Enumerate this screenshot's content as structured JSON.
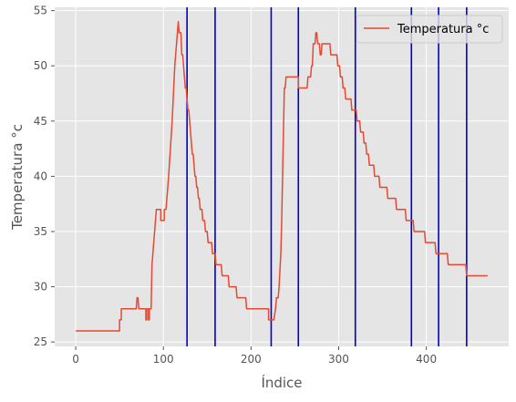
{
  "chart_data": {
    "type": "line",
    "title": "",
    "xlabel": "Índice",
    "ylabel": "Temperatura °c",
    "xlim": [
      -24,
      494
    ],
    "ylim": [
      24.6,
      55.3
    ],
    "xticks": [
      0,
      100,
      200,
      300,
      400
    ],
    "yticks": [
      25,
      30,
      35,
      40,
      45,
      50,
      55
    ],
    "grid": true,
    "legend": "top-right",
    "series": [
      {
        "name": "Temperatura °c",
        "color": "#E24A33",
        "points": [
          [
            0,
            26
          ],
          [
            50,
            26
          ],
          [
            50,
            27
          ],
          [
            52,
            27
          ],
          [
            52,
            28
          ],
          [
            69,
            28
          ],
          [
            70,
            29
          ],
          [
            71,
            29
          ],
          [
            72,
            28
          ],
          [
            80,
            28
          ],
          [
            80,
            27
          ],
          [
            81,
            27
          ],
          [
            81,
            28
          ],
          [
            83,
            28
          ],
          [
            83,
            27
          ],
          [
            84,
            27
          ],
          [
            84,
            28
          ],
          [
            86,
            28
          ],
          [
            87,
            32
          ],
          [
            90,
            35
          ],
          [
            92,
            37
          ],
          [
            97,
            37
          ],
          [
            97,
            36
          ],
          [
            101,
            36
          ],
          [
            101,
            37
          ],
          [
            103,
            37
          ],
          [
            106,
            40
          ],
          [
            110,
            45
          ],
          [
            113,
            50
          ],
          [
            116,
            53
          ],
          [
            117,
            54
          ],
          [
            118,
            53
          ],
          [
            120,
            53
          ],
          [
            121,
            51
          ],
          [
            122,
            51
          ],
          [
            124,
            49
          ],
          [
            125,
            48
          ],
          [
            126,
            48
          ],
          [
            127,
            47
          ],
          [
            128,
            46
          ],
          [
            129,
            46
          ],
          [
            130,
            45
          ],
          [
            131,
            44
          ],
          [
            132,
            43
          ],
          [
            133,
            42
          ],
          [
            134,
            42
          ],
          [
            135,
            41
          ],
          [
            136,
            40
          ],
          [
            137,
            40
          ],
          [
            138,
            39
          ],
          [
            139,
            39
          ],
          [
            140,
            38
          ],
          [
            141,
            38
          ],
          [
            142,
            37
          ],
          [
            144,
            37
          ],
          [
            145,
            36
          ],
          [
            147,
            36
          ],
          [
            148,
            35
          ],
          [
            150,
            35
          ],
          [
            151,
            34
          ],
          [
            155,
            34
          ],
          [
            156,
            33
          ],
          [
            159,
            33
          ],
          [
            160,
            32
          ],
          [
            166,
            32
          ],
          [
            167,
            31
          ],
          [
            174,
            31
          ],
          [
            175,
            30
          ],
          [
            183,
            30
          ],
          [
            184,
            29
          ],
          [
            194,
            29
          ],
          [
            195,
            28
          ],
          [
            220,
            28
          ],
          [
            220,
            27
          ],
          [
            226,
            27
          ],
          [
            228,
            28
          ],
          [
            229,
            29
          ],
          [
            231,
            29
          ],
          [
            232,
            30
          ],
          [
            234,
            33
          ],
          [
            235,
            36
          ],
          [
            237,
            44
          ],
          [
            238,
            48
          ],
          [
            239,
            48
          ],
          [
            240,
            49
          ],
          [
            254,
            49
          ],
          [
            254,
            48
          ],
          [
            264,
            48
          ],
          [
            265,
            49
          ],
          [
            268,
            49
          ],
          [
            269,
            50
          ],
          [
            270,
            50
          ],
          [
            271,
            52
          ],
          [
            273,
            52
          ],
          [
            274,
            53
          ],
          [
            275,
            53
          ],
          [
            276,
            52
          ],
          [
            278,
            52
          ],
          [
            279,
            51
          ],
          [
            280,
            51
          ],
          [
            281,
            52
          ],
          [
            290,
            52
          ],
          [
            291,
            51
          ],
          [
            298,
            51
          ],
          [
            299,
            50
          ],
          [
            301,
            50
          ],
          [
            302,
            49
          ],
          [
            304,
            49
          ],
          [
            305,
            48
          ],
          [
            307,
            48
          ],
          [
            308,
            47
          ],
          [
            314,
            47
          ],
          [
            315,
            46
          ],
          [
            320,
            46
          ],
          [
            321,
            45
          ],
          [
            324,
            45
          ],
          [
            325,
            44
          ],
          [
            328,
            44
          ],
          [
            329,
            43
          ],
          [
            331,
            43
          ],
          [
            332,
            42
          ],
          [
            334,
            42
          ],
          [
            335,
            41
          ],
          [
            340,
            41
          ],
          [
            341,
            40
          ],
          [
            346,
            40
          ],
          [
            347,
            39
          ],
          [
            355,
            39
          ],
          [
            356,
            38
          ],
          [
            365,
            38
          ],
          [
            366,
            37
          ],
          [
            376,
            37
          ],
          [
            377,
            36
          ],
          [
            385,
            36
          ],
          [
            386,
            35
          ],
          [
            398,
            35
          ],
          [
            399,
            34
          ],
          [
            410,
            34
          ],
          [
            411,
            33
          ],
          [
            424,
            33
          ],
          [
            425,
            32
          ],
          [
            445,
            32
          ],
          [
            446,
            31
          ],
          [
            470,
            31
          ]
        ]
      }
    ],
    "vlines": {
      "color": "#0000CC",
      "x": [
        127,
        159,
        223,
        254,
        319,
        383,
        414,
        446
      ]
    }
  }
}
